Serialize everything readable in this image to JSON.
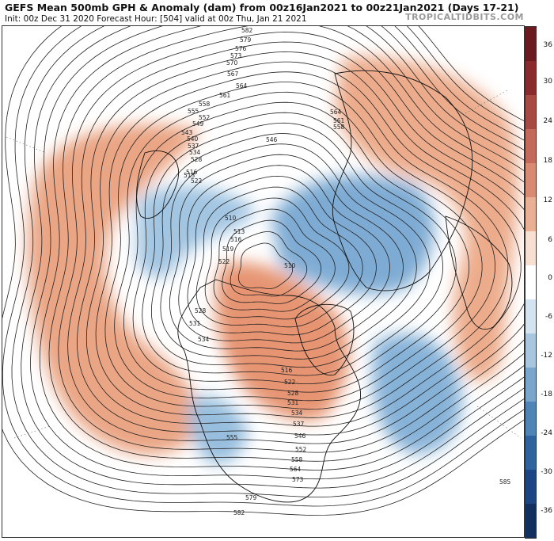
{
  "header": {
    "title": "GEFS Mean 500mb GPH & Anomaly (dam) from 00z16Jan2021 to 00z21Jan2021 (Days 17-21)",
    "subtitle": "Init: 00z Dec 31 2020   Forecast Hour: [504]   valid at 00z Thu, Jan 21 2021",
    "brand": "TROPICALTIDBITS.COM"
  },
  "colorbar": {
    "ticks": [
      "36",
      "30",
      "24",
      "18",
      "12",
      "6",
      "0",
      "-6",
      "-12",
      "-18",
      "-24",
      "-30",
      "-36"
    ],
    "colors": [
      "#6b1a20",
      "#8a2a2c",
      "#a84a44",
      "#c46a5a",
      "#d88b72",
      "#eab094",
      "#f7e0d2",
      "#ffffff",
      "#d3e3ef",
      "#a8c6df",
      "#7ba6cc",
      "#4f85b6",
      "#2f63a0",
      "#1c4683",
      "#12305f"
    ]
  },
  "map": {
    "contour_labels": [
      "582",
      "579",
      "576",
      "573",
      "570",
      "567",
      "564",
      "561",
      "558",
      "555",
      "552",
      "549",
      "546",
      "543",
      "540",
      "537",
      "534",
      "531",
      "528",
      "525",
      "522",
      "519",
      "516",
      "513",
      "510",
      "585"
    ],
    "anomaly_positive_color": "#e8946a",
    "anomaly_negative_color": "#6fa3d0"
  }
}
